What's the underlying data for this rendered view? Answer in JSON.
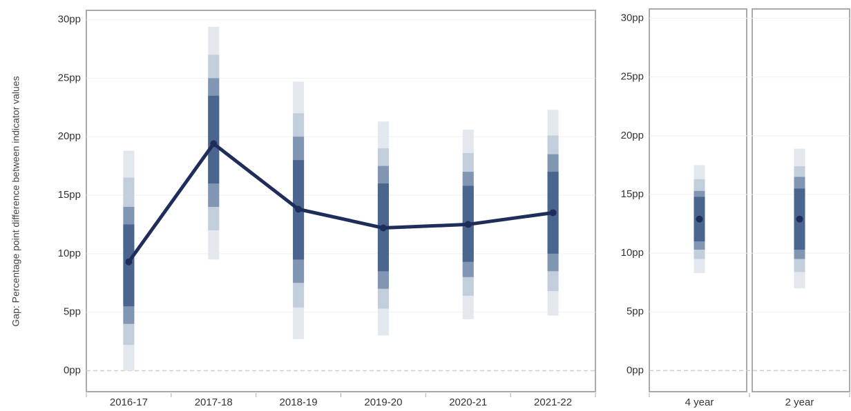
{
  "chart_data": [
    {
      "type": "line",
      "y_label": "Gap: Percentage point difference between indicator values",
      "categories": [
        "2016-17",
        "2017-18",
        "2018-19",
        "2019-20",
        "2020-21",
        "2021-22"
      ],
      "values": [
        9.3,
        19.4,
        13.8,
        12.2,
        12.5,
        13.5
      ],
      "color": "#1f2d5a",
      "bands": [
        {
          "color": "#e3e8ef",
          "low": [
            0,
            9.5,
            2.7,
            3,
            4.4,
            4.7
          ],
          "high": [
            18.8,
            29.4,
            24.7,
            21.3,
            20.6,
            22.3
          ]
        },
        {
          "color": "#c3cedc",
          "low": [
            2.2,
            12,
            5.4,
            5.3,
            6.4,
            6.8
          ],
          "high": [
            16.5,
            27,
            22,
            19,
            18.6,
            20.1
          ]
        },
        {
          "color": "#8196b3",
          "low": [
            4,
            14,
            7.5,
            7,
            8,
            8.5
          ],
          "high": [
            14,
            25,
            20,
            17.5,
            17,
            18.5
          ]
        },
        {
          "color": "#4a668f",
          "low": [
            5.5,
            16,
            9.5,
            8.5,
            9.3,
            10
          ],
          "high": [
            12.5,
            23.5,
            18,
            16,
            15.8,
            17
          ]
        }
      ],
      "ylim": [
        -1.8,
        30.8
      ],
      "yticks": [
        {
          "value": 0,
          "label": "0pp"
        },
        {
          "value": 5,
          "label": "5pp"
        },
        {
          "value": 10,
          "label": "10pp"
        },
        {
          "value": 15,
          "label": "15pp"
        },
        {
          "value": 20,
          "label": "20pp"
        },
        {
          "value": 25,
          "label": "25pp"
        },
        {
          "value": 30,
          "label": "30pp"
        }
      ],
      "grid": true
    },
    {
      "type": "point",
      "categories": [
        "4 year",
        "2 year"
      ],
      "values": [
        12.9,
        12.9
      ],
      "color": "#1f2d5a",
      "bands": [
        {
          "color": "#e3e8ef",
          "low": [
            8.3,
            7
          ],
          "high": [
            17.5,
            18.9
          ]
        },
        {
          "color": "#c3cedc",
          "low": [
            9.5,
            8.4
          ],
          "high": [
            16.3,
            17.4
          ]
        },
        {
          "color": "#8196b3",
          "low": [
            10.3,
            9.5
          ],
          "high": [
            15.3,
            16.5
          ]
        },
        {
          "color": "#4a668f",
          "low": [
            11,
            10.3
          ],
          "high": [
            14.8,
            15.5
          ]
        }
      ],
      "ylim": [
        -1.8,
        30.8
      ],
      "yticks": [
        {
          "value": 0,
          "label": "0pp"
        },
        {
          "value": 5,
          "label": "5pp"
        },
        {
          "value": 10,
          "label": "10pp"
        },
        {
          "value": 15,
          "label": "15pp"
        },
        {
          "value": 20,
          "label": "20pp"
        },
        {
          "value": 25,
          "label": "25pp"
        },
        {
          "value": 30,
          "label": "30pp"
        }
      ],
      "grid": true
    }
  ]
}
